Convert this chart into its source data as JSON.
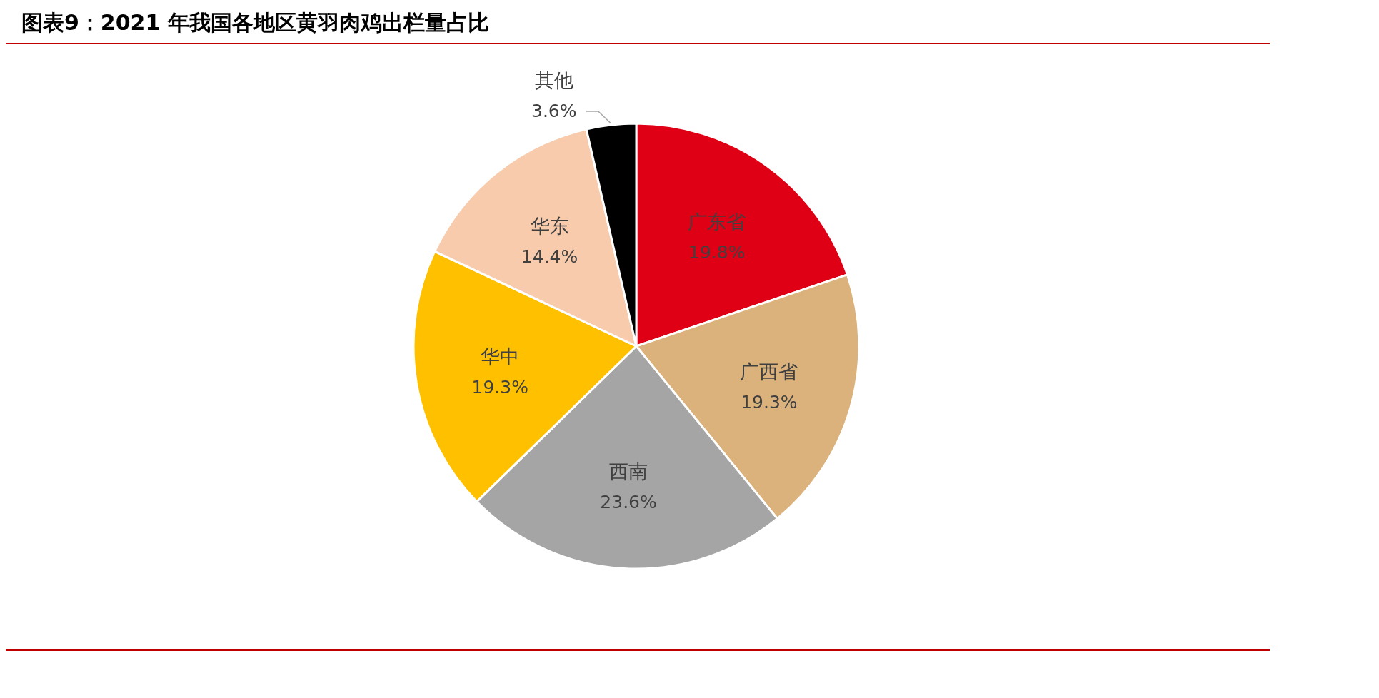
{
  "chart_data": {
    "type": "pie",
    "title": "图表9：2021 年我国各地区黄羽肉鸡出栏量占比",
    "categories": [
      "广东省",
      "广西省",
      "西南",
      "华中",
      "华东",
      "其他"
    ],
    "values": [
      19.8,
      19.3,
      23.6,
      19.3,
      14.4,
      3.6
    ],
    "colors": [
      "#e00016",
      "#dbb27c",
      "#a5a5a5",
      "#ffc000",
      "#f7cbac",
      "#000000"
    ],
    "value_labels": [
      "19.8%",
      "19.3%",
      "23.6%",
      "19.3%",
      "14.4%",
      "3.6%"
    ]
  }
}
